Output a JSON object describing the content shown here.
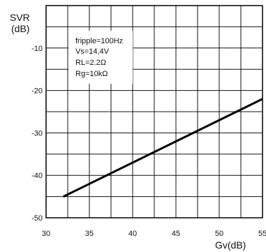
{
  "chart_data": {
    "type": "line",
    "ylabel_line1": "SVR",
    "ylabel_line2": "(dB)",
    "xlabel": "Gv(dB)",
    "xlim": [
      30,
      55
    ],
    "ylim": [
      -50,
      0
    ],
    "x_ticks": [
      30,
      35,
      40,
      45,
      50,
      55
    ],
    "x_tick_labels": [
      "30",
      "35",
      "40",
      "45",
      "50",
      "55"
    ],
    "y_ticks": [
      -10,
      -20,
      -30,
      -40,
      -50
    ],
    "y_tick_labels": [
      "-10",
      "-20",
      "-30",
      "-40",
      "-50"
    ],
    "grid": true,
    "annotations": [
      "fripple=100Hz",
      "Vs=14,4V",
      "RL=2.2Ω",
      "Rg=10kΩ"
    ],
    "series": [
      {
        "x": [
          32,
          55
        ],
        "y": [
          -45,
          -22
        ]
      }
    ]
  }
}
